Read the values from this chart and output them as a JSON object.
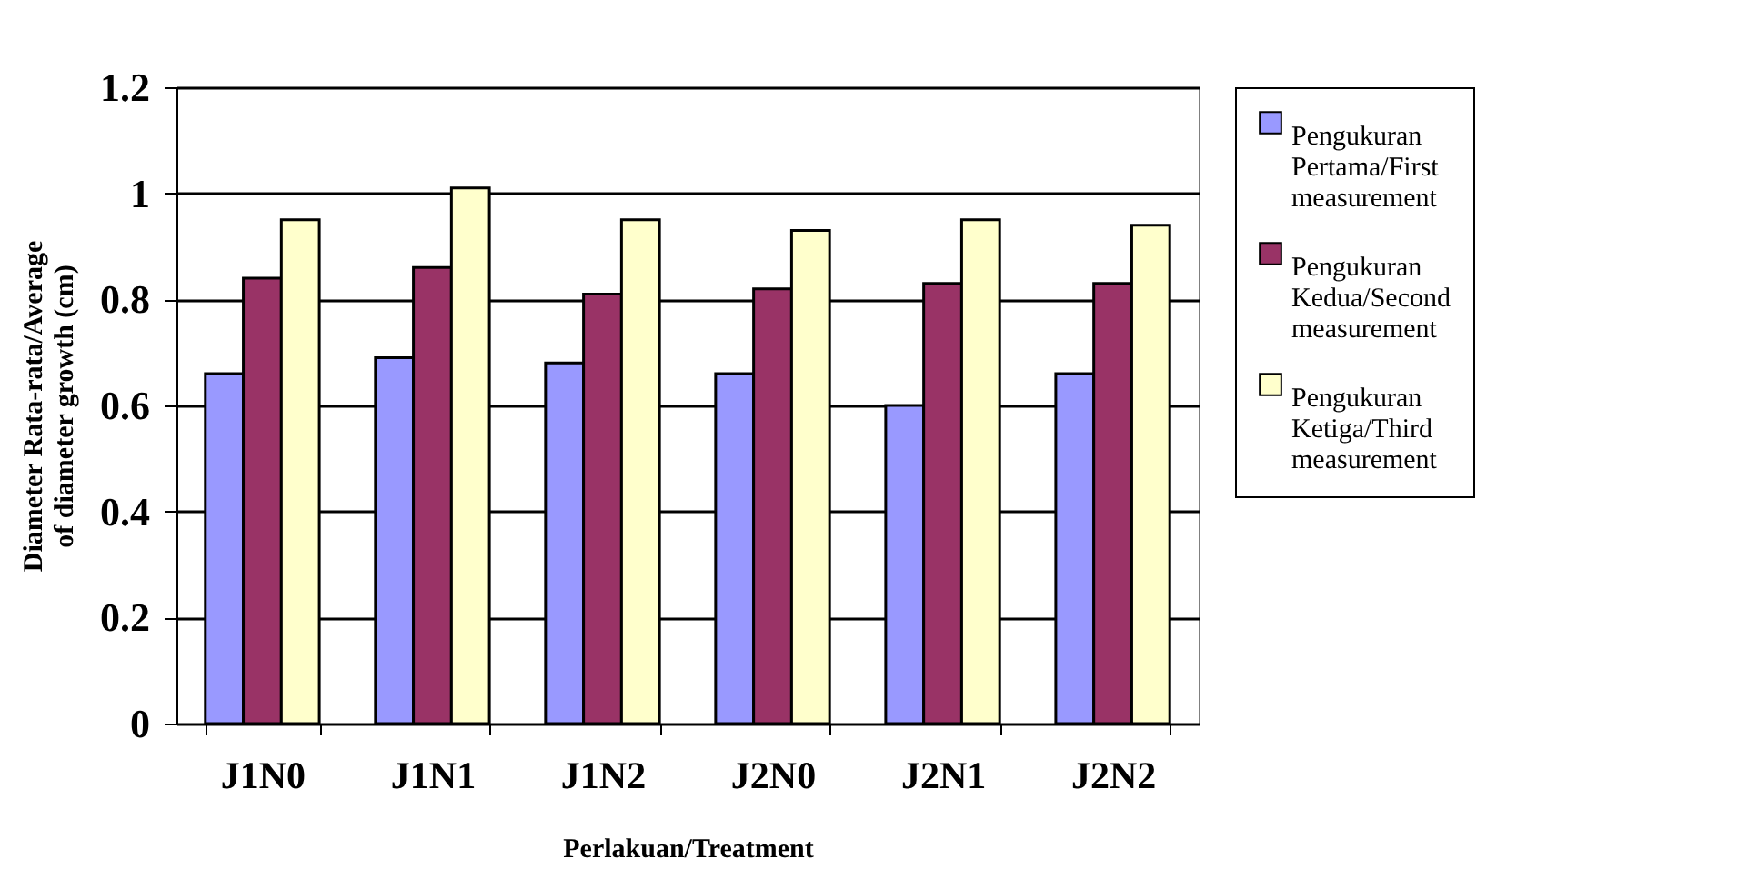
{
  "chart_data": {
    "type": "bar",
    "xlabel": "Perlakuan/Treatment",
    "ylabel": "Diameter Rata-rata/Average of diameter growth (cm)",
    "categories": [
      "J1N0",
      "J1N1",
      "J1N2",
      "J2N0",
      "J2N1",
      "J2N2"
    ],
    "series": [
      {
        "name": "Pengukuran Pertama/First measurement",
        "color": "#9999ff",
        "values": [
          0.66,
          0.69,
          0.68,
          0.66,
          0.6,
          0.66
        ]
      },
      {
        "name": "Pengukuran Kedua/Second measurement",
        "color": "#993366",
        "values": [
          0.84,
          0.86,
          0.81,
          0.82,
          0.83,
          0.83
        ]
      },
      {
        "name": "Pengukuran Ketiga/Third measurement",
        "color": "#ffffcc",
        "values": [
          0.95,
          1.01,
          0.95,
          0.93,
          0.95,
          0.94
        ]
      }
    ],
    "ylim": [
      0,
      1.2
    ],
    "yticks": [
      0,
      0.2,
      0.4,
      0.6,
      0.8,
      1,
      1.2
    ],
    "grid": "y",
    "legend": "right"
  }
}
